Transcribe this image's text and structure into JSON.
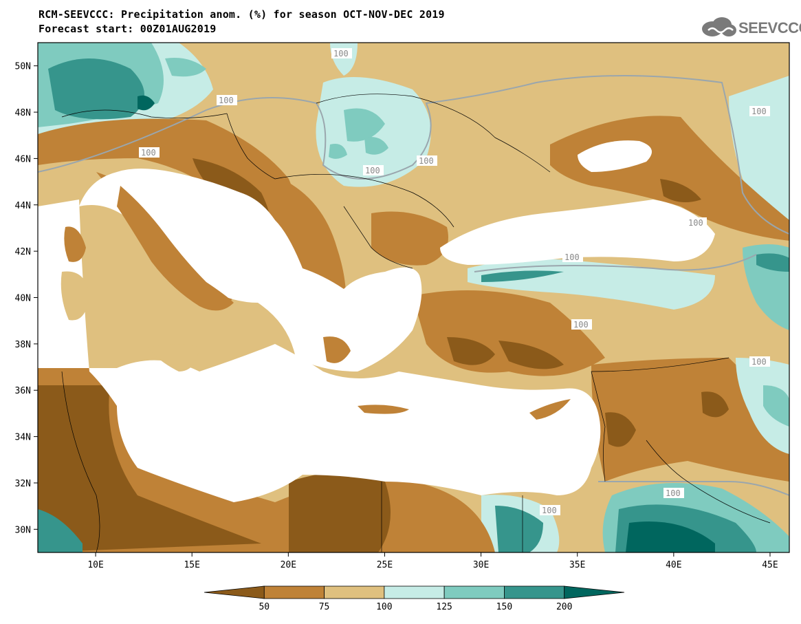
{
  "header": {
    "title_line1": "RCM-SEEVCCC: Precipitation anom. (%) for season OCT-NOV-DEC 2019",
    "title_line2": "Forecast start: 00Z01AUG2019",
    "logo_text": "SEEVCCC"
  },
  "map": {
    "extent": {
      "lon": [
        7,
        46
      ],
      "lat": [
        29,
        51
      ]
    },
    "lat_labels": [
      "50N",
      "48N",
      "46N",
      "44N",
      "42N",
      "40N",
      "38N",
      "36N",
      "34N",
      "32N",
      "30N"
    ],
    "lat_values": [
      50,
      48,
      46,
      44,
      42,
      40,
      38,
      36,
      34,
      32,
      30
    ],
    "lon_labels": [
      "10E",
      "15E",
      "20E",
      "25E",
      "30E",
      "35E",
      "40E",
      "45E"
    ],
    "lon_values": [
      10,
      15,
      20,
      25,
      30,
      35,
      40,
      45
    ],
    "contour_label": "100",
    "colors": {
      "very_dry": "#8b5a1a",
      "dry": "#bf8237",
      "slightly_dry": "#dfc07f",
      "slightly_wet": "#c6ece6",
      "wet": "#7fcbbf",
      "very_wet": "#36958c",
      "extreme_wet": "#00665e",
      "sea": "#ffffff"
    }
  },
  "legend": {
    "ticks": [
      "50",
      "75",
      "100",
      "125",
      "150",
      "200"
    ],
    "colors": [
      "#8b5a1a",
      "#bf8237",
      "#dfc07f",
      "#c6ece6",
      "#7fcbbf",
      "#36958c",
      "#00665e"
    ]
  }
}
